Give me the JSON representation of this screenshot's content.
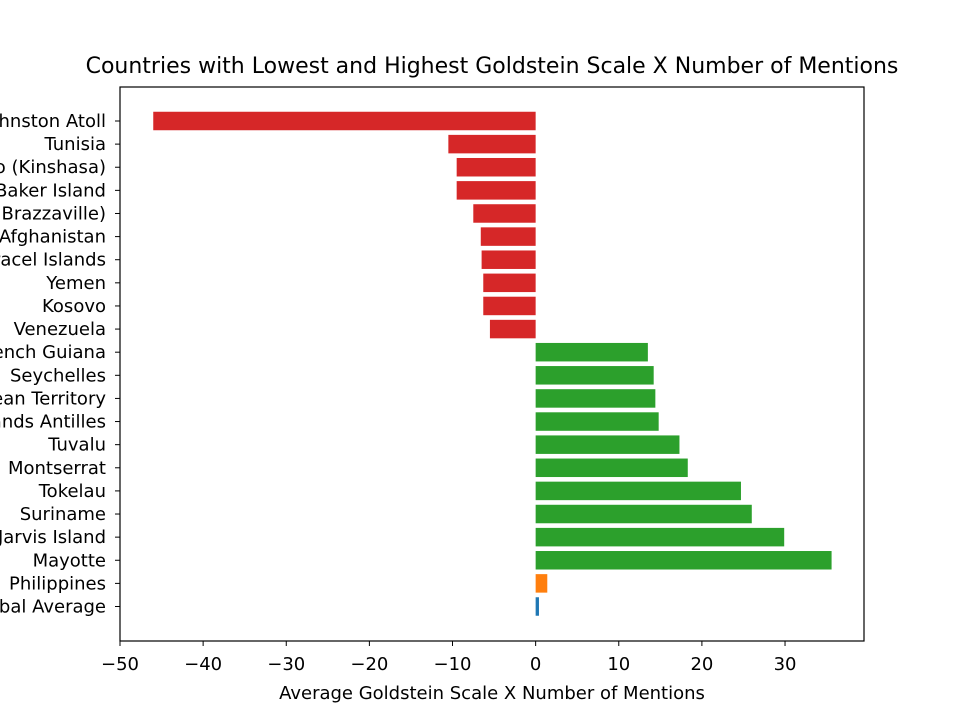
{
  "chart_data": {
    "type": "bar",
    "orientation": "horizontal",
    "title": "Countries with Lowest and Highest Goldstein Scale X Number of Mentions",
    "xlabel": "Average Goldstein Scale X Number of Mentions",
    "ylabel": "",
    "xlim": [
      -50,
      39.5
    ],
    "xticks": [
      -50,
      -40,
      -30,
      -20,
      -10,
      0,
      10,
      20,
      30
    ],
    "xtick_labels": [
      "−50",
      "−40",
      "−30",
      "−20",
      "−10",
      "0",
      "10",
      "20",
      "30"
    ],
    "grid": false,
    "legend": "none",
    "categories": [
      "Johnston Atoll",
      "Tunisia",
      "Congo (Kinshasa)",
      "Baker Island",
      "Congo (Brazzaville)",
      "Afghanistan",
      "Paracel Islands",
      "Yemen",
      "Kosovo",
      "Venezuela",
      "French Guiana",
      "Seychelles",
      "British Indian Ocean Territory",
      "Netherlands Antilles",
      "Tuvalu",
      "Montserrat",
      "Tokelau",
      "Suriname",
      "Jarvis Island",
      "Mayotte",
      "Philippines",
      "Global Average"
    ],
    "values": [
      -46,
      -10.5,
      -9.5,
      -9.5,
      -7.5,
      -6.6,
      -6.5,
      -6.3,
      -6.3,
      -5.5,
      13.5,
      14.2,
      14.4,
      14.8,
      17.3,
      18.3,
      24.7,
      26.0,
      29.9,
      35.6,
      1.4,
      0.4
    ],
    "colors": [
      "#d62728",
      "#d62728",
      "#d62728",
      "#d62728",
      "#d62728",
      "#d62728",
      "#d62728",
      "#d62728",
      "#d62728",
      "#d62728",
      "#2ca02c",
      "#2ca02c",
      "#2ca02c",
      "#2ca02c",
      "#2ca02c",
      "#2ca02c",
      "#2ca02c",
      "#2ca02c",
      "#2ca02c",
      "#2ca02c",
      "#ff7f0e",
      "#1f77b4"
    ]
  }
}
